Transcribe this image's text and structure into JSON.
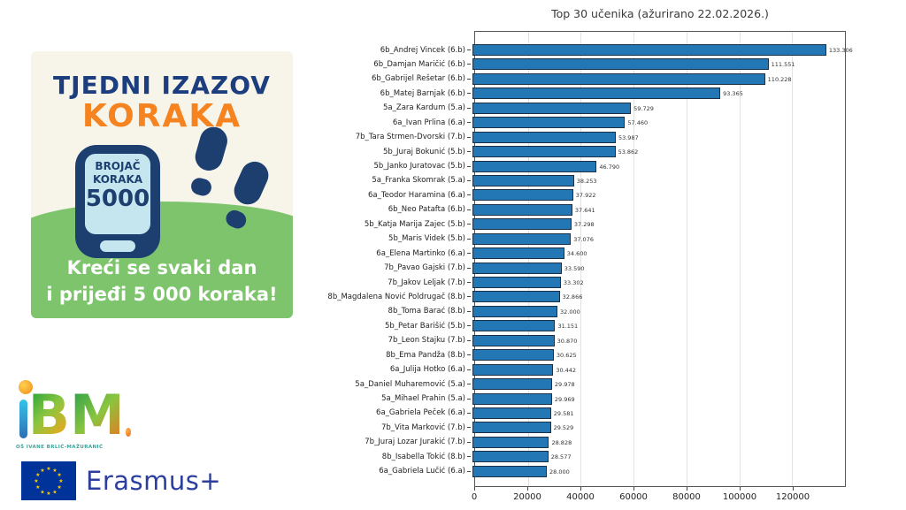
{
  "poster": {
    "title_line1": "TJEDNI IZAZOV",
    "title_line2": "KORAKA",
    "pedometer_line1": "BROJAČ",
    "pedometer_line2": "KORAKA",
    "pedometer_value": "5000",
    "footer_line1": "Kreći se svaki dan",
    "footer_line2": "i prijeđi 5 000 koraka!",
    "colors": {
      "headline_navy": "#1c3e7e",
      "accent_orange": "#f5831f",
      "grass_green": "#7dc46d",
      "device_navy": "#1d3f70",
      "screen_blue": "#c5e6ee"
    }
  },
  "logos": {
    "school": {
      "letter_b": "B",
      "letter_m": "M",
      "caption": "OŠ IVANE BRLIĆ-MAŽURANIĆ"
    },
    "erasmus": {
      "label": "Erasmus+",
      "flag_blue": "#003399",
      "star_yellow": "#ffcc00"
    }
  },
  "chart_data": {
    "type": "bar",
    "orientation": "horizontal",
    "title": "Top 30 učenika (ažurirano 22.02.2026.)",
    "xlabel": "",
    "ylabel": "",
    "xlim": [
      0,
      140000
    ],
    "xticks": [
      0,
      20000,
      40000,
      60000,
      80000,
      100000,
      120000
    ],
    "grid": true,
    "legend": false,
    "bar_color": "#2277b4",
    "bar_edge_color": "#1b2f45",
    "categories": [
      "6b_Andrej Vincek (6.b)",
      "6b_Damjan Maričić (6.b)",
      "6b_Gabrijel Rešetar (6.b)",
      "6b_Matej Barnjak (6.b)",
      "5a_Zara Kardum (5.a)",
      "6a_Ivan Prlina (6.a)",
      "7b_Tara Strmen-Dvorski (7.b)",
      "5b_Juraj Bokunić (5.b)",
      "5b_Janko Juratovac (5.b)",
      "5a_Franka Skomrak (5.a)",
      "6a_Teodor Haramina (6.a)",
      "6b_Neo Patafta (6.b)",
      "5b_Katja Marija Zajec (5.b)",
      "5b_Maris Videk (5.b)",
      "6a_Elena Martinko (6.a)",
      "7b_Pavao Gajski (7.b)",
      "7b_Jakov Leljak (7.b)",
      "8b_Magdalena Nović Poldrugač (8.b)",
      "8b_Toma Barać (8.b)",
      "5b_Petar Barišić (5.b)",
      "7b_Leon Stajku (7.b)",
      "8b_Ema Pandža (8.b)",
      "6a_Julija Hotko (6.a)",
      "5a_Daniel Muharemović (5.a)",
      "5a_Mihael Prahin (5.a)",
      "6a_Gabriela Peček (6.a)",
      "7b_Vita Marković (7.b)",
      "7b_Juraj Lozar Jurakić (7.b)",
      "8b_Isabella Tokić (8.b)",
      "6a_Gabriela Lučić (6.a)"
    ],
    "values": [
      133306,
      111551,
      110228,
      93365,
      59729,
      57460,
      53987,
      53862,
      46790,
      38253,
      37922,
      37641,
      37298,
      37076,
      34600,
      33590,
      33302,
      32866,
      32000,
      31151,
      30870,
      30625,
      30442,
      29978,
      29969,
      29581,
      29529,
      28828,
      28577,
      28000
    ],
    "value_labels": [
      "133.306",
      "111.551",
      "110.228",
      "93.365",
      "59.729",
      "57.460",
      "53.987",
      "53.862",
      "46.790",
      "38.253",
      "37.922",
      "37.641",
      "37.298",
      "37.076",
      "34.600",
      "33.590",
      "33.302",
      "32.866",
      "32.000",
      "31.151",
      "30.870",
      "30.625",
      "30.442",
      "29.978",
      "29.969",
      "29.581",
      "29.529",
      "28.828",
      "28.577",
      "28.000"
    ]
  }
}
